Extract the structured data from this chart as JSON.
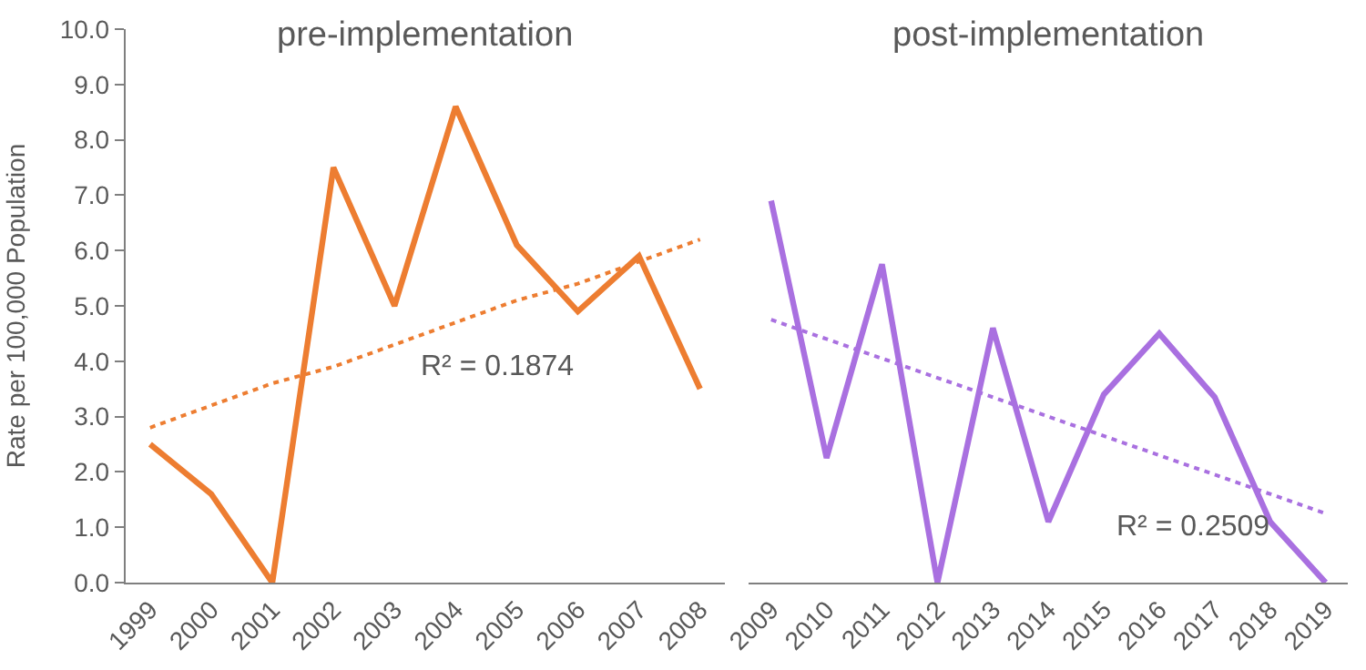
{
  "chart_data": [
    {
      "type": "line",
      "title": "pre-implementation",
      "ylabel": "Rate per 100,000 Population",
      "categories": [
        "1999",
        "2000",
        "2001",
        "2002",
        "2003",
        "2004",
        "2005",
        "2006",
        "2007",
        "2008"
      ],
      "series": [
        {
          "color": "#ed7d31",
          "values": [
            2.5,
            1.6,
            0.0,
            7.5,
            5.0,
            8.6,
            6.1,
            4.9,
            5.9,
            3.5
          ]
        },
        {
          "color": "#ed7d31",
          "line_style": "dotted",
          "values": [
            2.8,
            3.2,
            3.6,
            3.9,
            4.3,
            4.7,
            5.1,
            5.4,
            5.8,
            6.2
          ]
        }
      ],
      "ylim": [
        0,
        10
      ],
      "yticks": [
        {
          "value": 0,
          "label": "0.0"
        },
        {
          "value": 1,
          "label": "1.0"
        },
        {
          "value": 2,
          "label": "2.0"
        },
        {
          "value": 3,
          "label": "3.0"
        },
        {
          "value": 4,
          "label": "4.0"
        },
        {
          "value": 5,
          "label": "5.0"
        },
        {
          "value": 6,
          "label": "6.0"
        },
        {
          "value": 7,
          "label": "7.0"
        },
        {
          "value": 8,
          "label": "8.0"
        },
        {
          "value": 9,
          "label": "9.0"
        },
        {
          "value": 10,
          "label": "10.0"
        }
      ],
      "annotations": [
        "R² = 0.1874"
      ],
      "line_style": "solid",
      "marker": "none"
    },
    {
      "type": "line",
      "title": "post-implementation",
      "categories": [
        "2009",
        "2010",
        "2011",
        "2012",
        "2013",
        "2014",
        "2015",
        "2016",
        "2017",
        "2018",
        "2019"
      ],
      "series": [
        {
          "color": "#a970e0",
          "values": [
            6.9,
            2.25,
            5.75,
            0.0,
            4.6,
            1.1,
            3.4,
            4.5,
            3.35,
            1.1,
            0.0
          ]
        },
        {
          "color": "#a970e0",
          "line_style": "dotted",
          "values": [
            4.75,
            4.4,
            4.05,
            3.7,
            3.35,
            3.0,
            2.65,
            2.3,
            1.95,
            1.6,
            1.25
          ]
        }
      ],
      "ylim": [
        0,
        10
      ],
      "annotations": [
        "R² = 0.2509"
      ],
      "tick_labels": "x",
      "line_style": "solid",
      "marker": "none"
    }
  ]
}
